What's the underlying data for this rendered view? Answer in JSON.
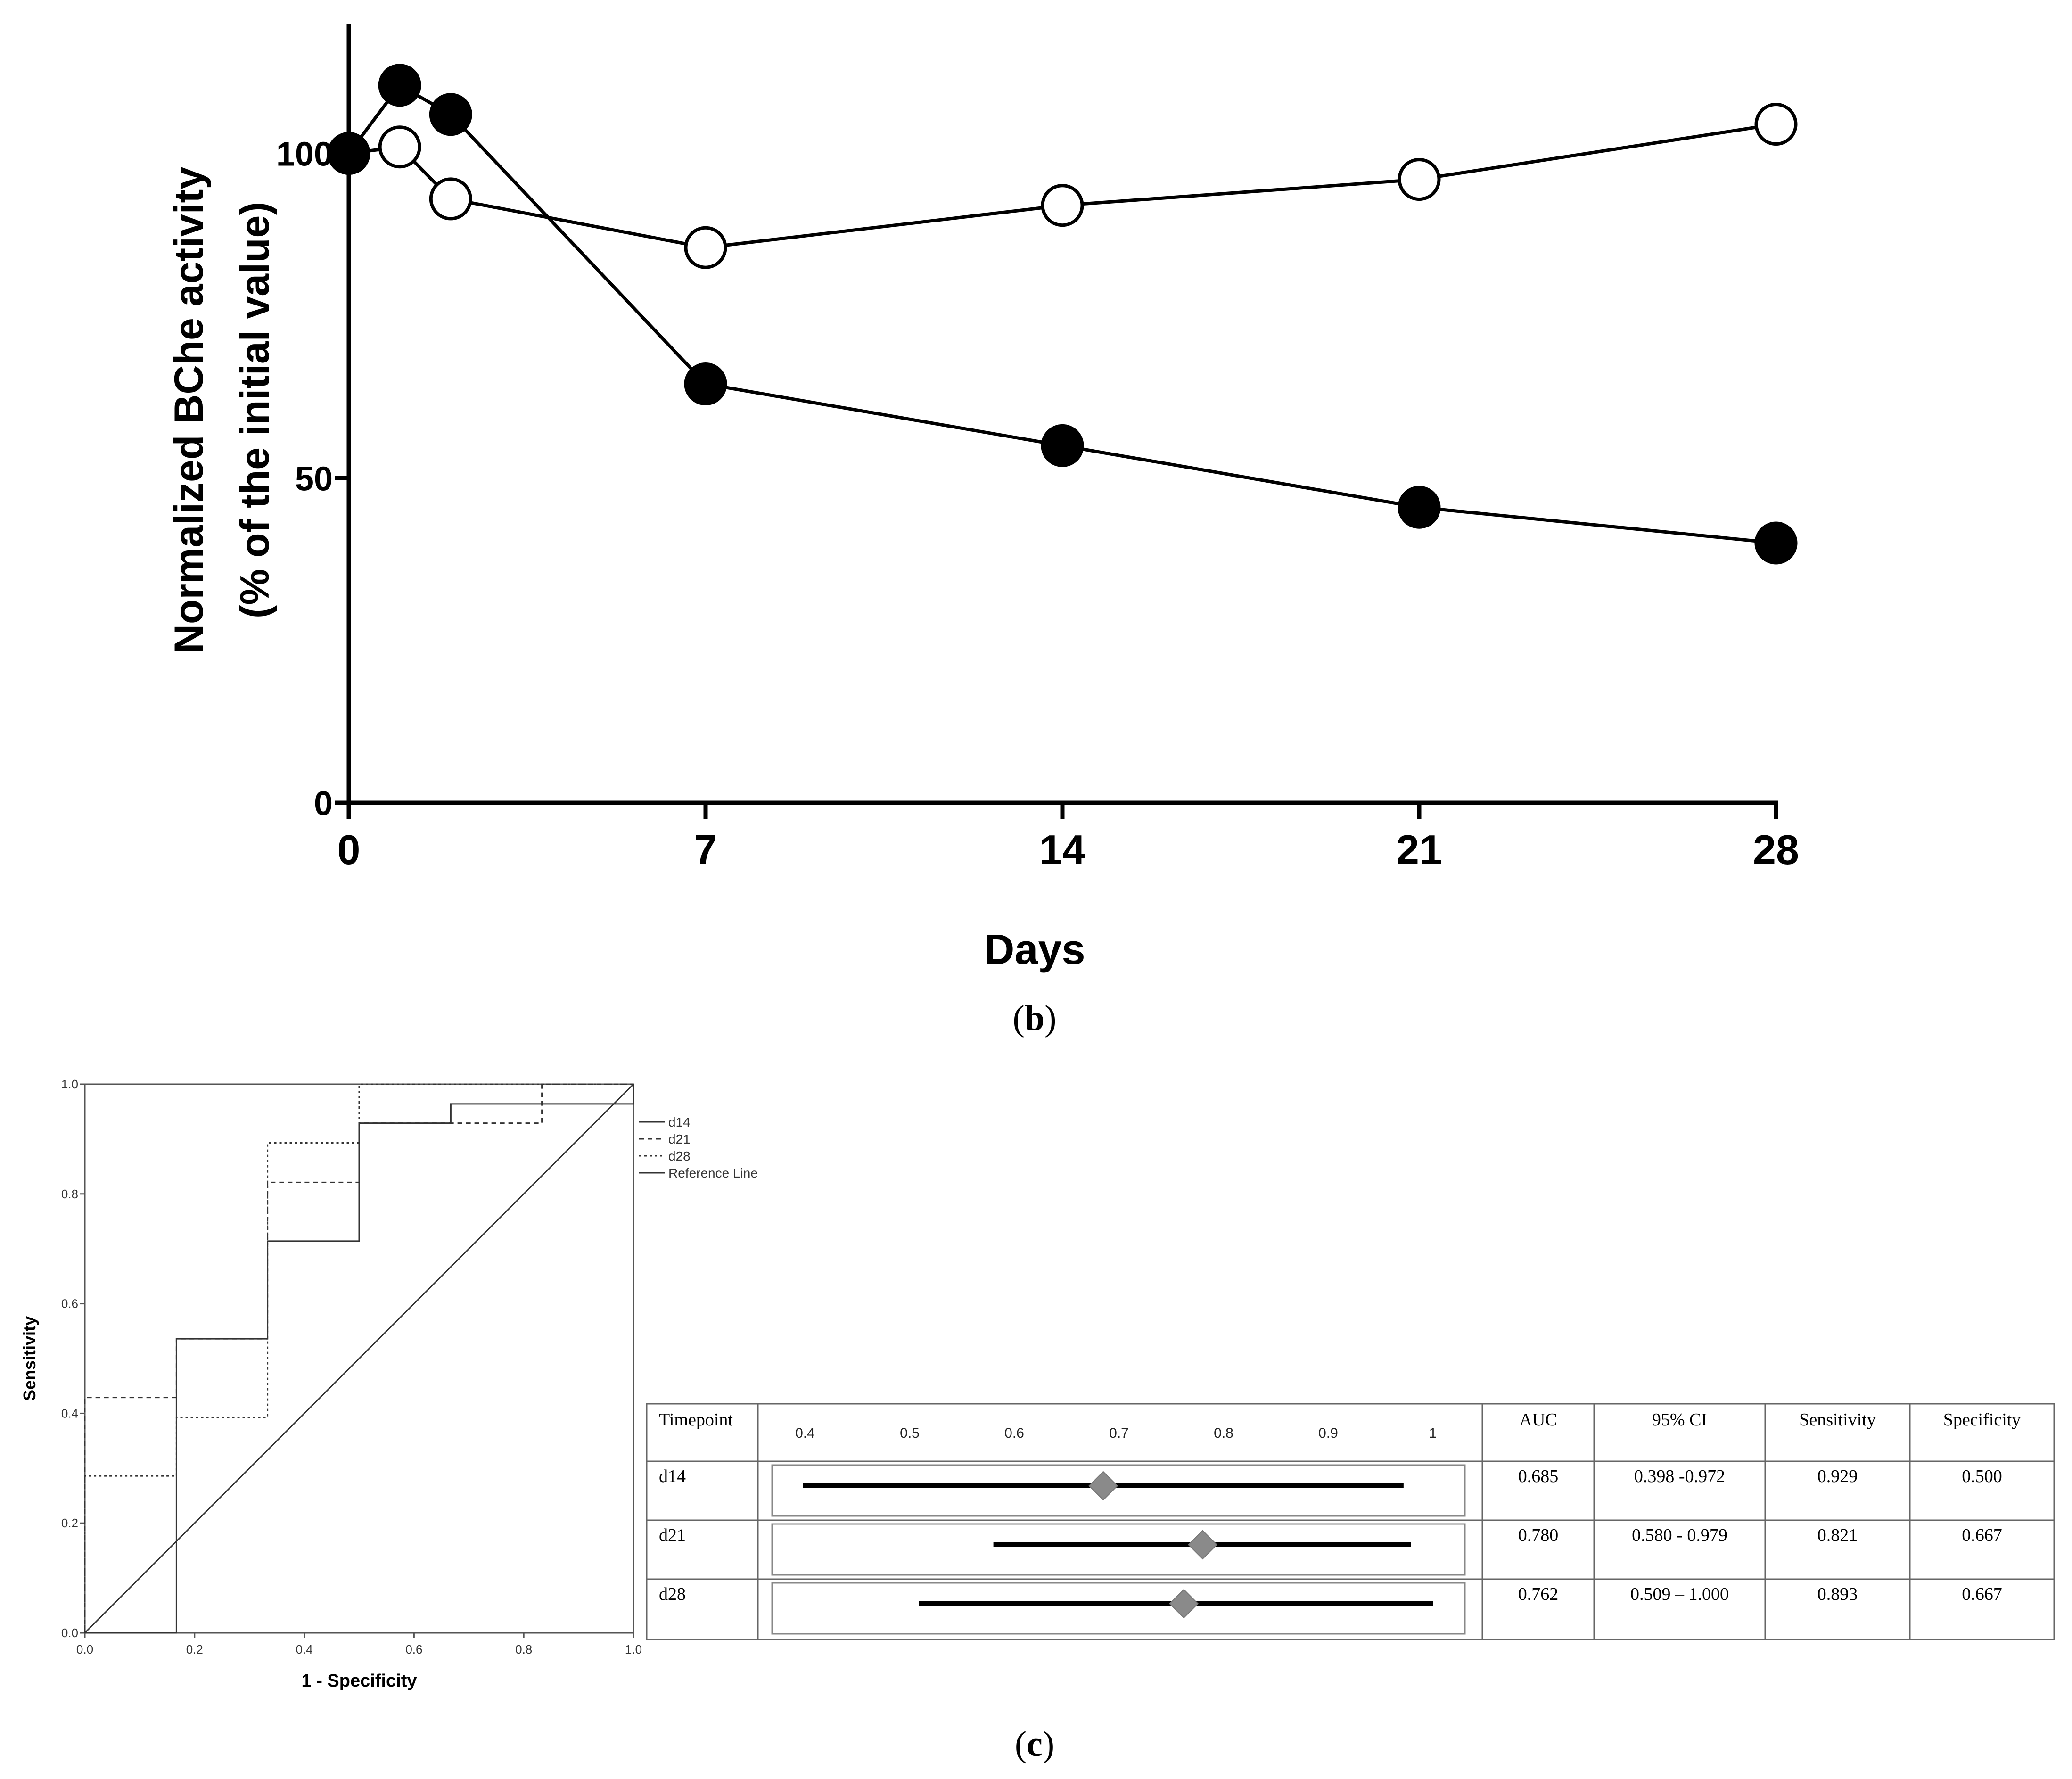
{
  "panel_b": {
    "caption_letter": "b",
    "caption_open": "(",
    "caption_close": ")"
  },
  "panel_c": {
    "caption_letter": "c",
    "caption_open": "(",
    "caption_close": ")",
    "table": {
      "headers": [
        "Timepoint",
        "AUC",
        "95% CI",
        "Sensitivity",
        "Specificity"
      ],
      "forest_axis_ticks": [
        "0.4",
        "0.5",
        "0.6",
        "0.7",
        "0.8",
        "0.9",
        "1"
      ],
      "rows": [
        {
          "timepoint": "d14",
          "auc": "0.685",
          "ci": "0.398 -0.972",
          "sensitivity": "0.929",
          "specificity": "0.500",
          "auc_value": 0.685,
          "ci_low": 0.398,
          "ci_high": 0.972
        },
        {
          "timepoint": "d21",
          "auc": "0.780",
          "ci": "0.580 - 0.979",
          "sensitivity": "0.821",
          "specificity": "0.667",
          "auc_value": 0.78,
          "ci_low": 0.58,
          "ci_high": 0.979
        },
        {
          "timepoint": "d28",
          "auc": "0.762",
          "ci": "0.509 – 1.000",
          "sensitivity": "0.893",
          "specificity": "0.667",
          "auc_value": 0.762,
          "ci_low": 0.509,
          "ci_high": 1.0
        }
      ]
    }
  },
  "chart_data": [
    {
      "type": "line",
      "title": "",
      "xlabel": "Days",
      "ylabel": "Normalized BChe activity",
      "ylabel_line2": "(% of the initial value)",
      "x_ticks": [
        "0",
        "7",
        "14",
        "21",
        "28"
      ],
      "y_ticks": [
        "0",
        "50",
        "100"
      ],
      "xlim": [
        0,
        28
      ],
      "ylim": [
        0,
        120
      ],
      "series": [
        {
          "name": "open circles",
          "marker": "open-circle",
          "x": [
            0,
            1,
            2,
            7,
            14,
            21,
            28
          ],
          "y": [
            100,
            101,
            93,
            85.5,
            92,
            96,
            104.5
          ]
        },
        {
          "name": "filled circles",
          "marker": "filled-circle",
          "x": [
            0,
            1,
            2,
            7,
            14,
            21,
            28
          ],
          "y": [
            100,
            110.5,
            106,
            64.5,
            55,
            45.5,
            40
          ]
        }
      ]
    },
    {
      "type": "line",
      "title": "",
      "xlabel": "1 - Specificity",
      "ylabel": "Sensitivity",
      "x_ticks": [
        "0.0",
        "0.2",
        "0.4",
        "0.6",
        "0.8",
        "1.0"
      ],
      "y_ticks": [
        "0.0",
        "0.2",
        "0.4",
        "0.6",
        "0.8",
        "1.0"
      ],
      "xlim": [
        0,
        1
      ],
      "ylim": [
        0,
        1
      ],
      "legend": [
        "d14",
        "d21",
        "d28",
        "Reference Line"
      ],
      "legend_position": "right",
      "series": [
        {
          "name": "d14",
          "style": "solid",
          "x": [
            0,
            0,
            0.167,
            0.167,
            0.333,
            0.333,
            0.5,
            0.5,
            0.667,
            0.667,
            1,
            1
          ],
          "y": [
            0,
            0,
            0,
            0.536,
            0.536,
            0.714,
            0.714,
            0.929,
            0.929,
            0.964,
            0.964,
            1
          ]
        },
        {
          "name": "d21",
          "style": "dashed",
          "x": [
            0,
            0,
            0.167,
            0.167,
            0.333,
            0.333,
            0.5,
            0.5,
            0.833,
            0.833,
            1
          ],
          "y": [
            0,
            0.429,
            0.429,
            0.536,
            0.536,
            0.821,
            0.821,
            0.929,
            0.929,
            1,
            1
          ]
        },
        {
          "name": "d28",
          "style": "dotted",
          "x": [
            0,
            0,
            0.167,
            0.167,
            0.333,
            0.333,
            0.5,
            0.5,
            1
          ],
          "y": [
            0,
            0.286,
            0.286,
            0.393,
            0.393,
            0.893,
            0.893,
            1,
            1
          ]
        },
        {
          "name": "Reference Line",
          "style": "solid",
          "x": [
            0,
            1
          ],
          "y": [
            0,
            1
          ]
        }
      ]
    }
  ]
}
